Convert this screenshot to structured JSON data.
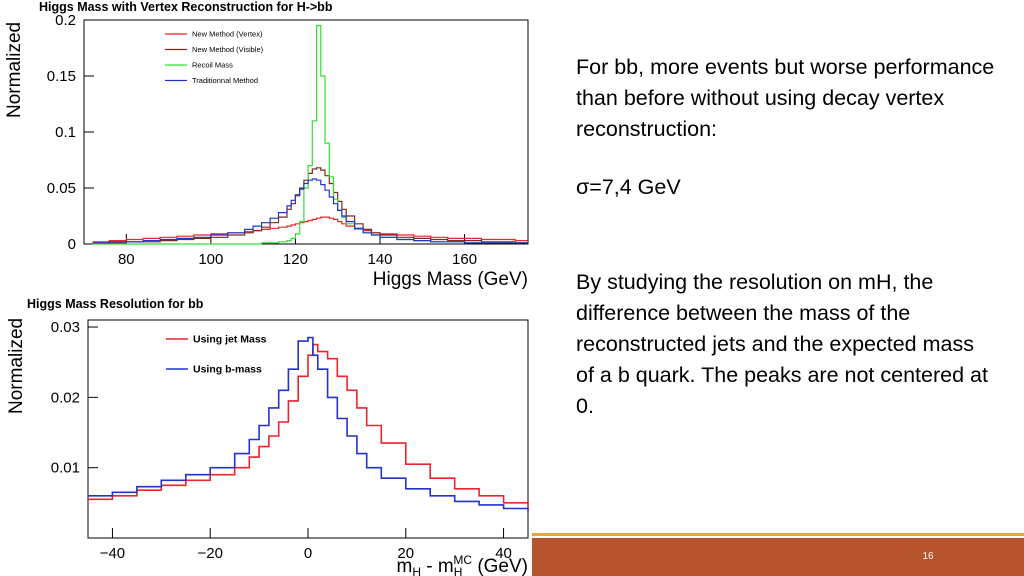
{
  "slide": {
    "paragraph1": "For bb, more events but worse performance than before without using decay vertex reconstruction:",
    "sigma": "σ=7,4 GeV",
    "paragraph2": "By studying the resolution on mH, the difference between the mass of the reconstructed jets and the expected mass of a b quark. The peaks are not centered at 0.",
    "page_number": "16"
  },
  "colors": {
    "accent_orange": "#e8a33d",
    "footer_brown": "#b6542d"
  },
  "chart_data": [
    {
      "type": "line",
      "title": "Higgs Mass with Vertex Reconstruction for H->bb",
      "xlabel": "Higgs Mass (GeV)",
      "ylabel": "Normalized",
      "xlim": [
        70,
        175
      ],
      "ylim": [
        0,
        0.2
      ],
      "xticks": [
        80,
        100,
        120,
        140,
        160
      ],
      "yticks": [
        0,
        0.05,
        0.1,
        0.15,
        0.2
      ],
      "ytick_labels": [
        "0",
        "0.05",
        "0.1",
        "0.15",
        "0.2"
      ],
      "legend_position": "top-left",
      "x": [
        72,
        76,
        80,
        84,
        88,
        92,
        96,
        100,
        104,
        108,
        110,
        112,
        114,
        116,
        118,
        119,
        120,
        121,
        122,
        123,
        124,
        125,
        126,
        127,
        128,
        129,
        130,
        131,
        132,
        134,
        136,
        138,
        140,
        144,
        148,
        152,
        156,
        160,
        164,
        168,
        172,
        175
      ],
      "series": [
        {
          "name": "New Method (Vertex)",
          "color": "#e8242d",
          "values": [
            0.002,
            0.003,
            0.004,
            0.005,
            0.006,
            0.007,
            0.008,
            0.009,
            0.01,
            0.011,
            0.012,
            0.013,
            0.014,
            0.015,
            0.016,
            0.017,
            0.018,
            0.019,
            0.02,
            0.021,
            0.022,
            0.023,
            0.024,
            0.024,
            0.023,
            0.022,
            0.02,
            0.018,
            0.016,
            0.014,
            0.012,
            0.01,
            0.009,
            0.008,
            0.007,
            0.006,
            0.005,
            0.005,
            0.004,
            0.004,
            0.003,
            0.003
          ]
        },
        {
          "name": "New Method (Visible)",
          "color": "#7a2a1e",
          "values": [
            0.001,
            0.001,
            0.002,
            0.002,
            0.003,
            0.004,
            0.005,
            0.006,
            0.008,
            0.01,
            0.012,
            0.015,
            0.019,
            0.024,
            0.031,
            0.036,
            0.043,
            0.05,
            0.057,
            0.063,
            0.067,
            0.068,
            0.066,
            0.061,
            0.054,
            0.046,
            0.038,
            0.031,
            0.025,
            0.018,
            0.013,
            0.01,
            0.008,
            0.006,
            0.005,
            0.004,
            0.003,
            0.003,
            0.002,
            0.002,
            0.001,
            0.001
          ]
        },
        {
          "name": "Recoil Mass",
          "color": "#33dd33",
          "values": [
            0.0,
            0.0,
            0.0,
            0.0,
            0.0,
            0.0,
            0.0,
            0.0,
            0.0,
            0.0,
            0.0,
            0.001,
            0.001,
            0.002,
            0.003,
            0.005,
            0.009,
            0.02,
            0.05,
            0.07,
            0.11,
            0.195,
            0.15,
            0.09,
            0.06,
            0.04,
            0.03,
            0.024,
            0.018,
            0.013,
            0.01,
            0.008,
            0.006,
            0.004,
            0.003,
            0.002,
            0.002,
            0.001,
            0.001,
            0.001,
            0.001,
            0.001
          ]
        },
        {
          "name": "Traditionnal Method",
          "color": "#2233cc",
          "values": [
            0.001,
            0.002,
            0.002,
            0.003,
            0.004,
            0.005,
            0.006,
            0.008,
            0.01,
            0.013,
            0.016,
            0.019,
            0.023,
            0.028,
            0.034,
            0.039,
            0.044,
            0.049,
            0.054,
            0.057,
            0.058,
            0.057,
            0.053,
            0.048,
            0.042,
            0.036,
            0.03,
            0.025,
            0.02,
            0.014,
            0.01,
            0.008,
            0.006,
            0.004,
            0.003,
            0.002,
            0.002,
            0.001,
            0.001,
            0.001,
            0.001,
            0.001
          ]
        }
      ]
    },
    {
      "type": "line",
      "title": "Higgs Mass Resolution for bb",
      "xlabel": "m_H - m_H^MC (GeV)",
      "xlabel_parts": {
        "main": "m",
        "sub1": "H",
        "middle": " - m",
        "sub2": "H",
        "sup2": "MC",
        "unit": " (GeV)"
      },
      "ylabel": "Normalized",
      "xlim": [
        -45,
        45
      ],
      "ylim": [
        0,
        0.031
      ],
      "xticks": [
        -40,
        -20,
        0,
        20,
        40
      ],
      "xtick_labels": [
        "−40",
        "−20",
        "0",
        "20",
        "40"
      ],
      "yticks": [
        0.01,
        0.02,
        0.03
      ],
      "ytick_labels": [
        "0.01",
        "0.02",
        "0.03"
      ],
      "legend_position": "top-left",
      "x": [
        -45,
        -40,
        -35,
        -30,
        -25,
        -20,
        -15,
        -12,
        -10,
        -8,
        -6,
        -4,
        -2,
        0,
        1,
        2,
        4,
        6,
        8,
        10,
        12,
        15,
        20,
        25,
        30,
        35,
        40,
        45
      ],
      "series": [
        {
          "name": "Using jet Mass",
          "color": "#e8242d",
          "values": [
            0.0055,
            0.006,
            0.0068,
            0.0075,
            0.0082,
            0.009,
            0.01,
            0.0115,
            0.013,
            0.0145,
            0.0165,
            0.0195,
            0.023,
            0.026,
            0.0275,
            0.0265,
            0.0255,
            0.023,
            0.021,
            0.0185,
            0.016,
            0.0135,
            0.0105,
            0.0085,
            0.007,
            0.006,
            0.005,
            0.0042
          ]
        },
        {
          "name": "Using b-mass",
          "color": "#2233cc",
          "values": [
            0.006,
            0.0065,
            0.0073,
            0.0082,
            0.009,
            0.01,
            0.012,
            0.014,
            0.016,
            0.0185,
            0.021,
            0.024,
            0.028,
            0.0285,
            0.026,
            0.024,
            0.02,
            0.017,
            0.0145,
            0.012,
            0.01,
            0.0085,
            0.007,
            0.006,
            0.0052,
            0.0047,
            0.0042,
            0.0038
          ]
        }
      ]
    }
  ]
}
